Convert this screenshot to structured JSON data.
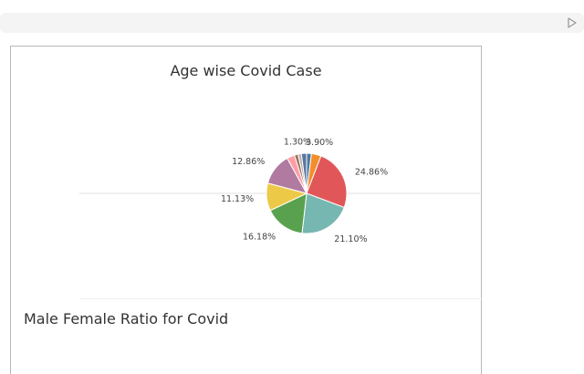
{
  "toolbar": {
    "play_icon": "play-icon"
  },
  "chart_data": {
    "type": "pie",
    "title": "Age wise Covid Case",
    "slices": [
      {
        "label": "",
        "value": 1.95,
        "color": "#4e79a7"
      },
      {
        "label": "3.90%",
        "value": 3.9,
        "color": "#f28e2b"
      },
      {
        "label": "24.86%",
        "value": 24.86,
        "color": "#e15759"
      },
      {
        "label": "21.10%",
        "value": 21.1,
        "color": "#76b7b2"
      },
      {
        "label": "16.18%",
        "value": 16.18,
        "color": "#59a14f"
      },
      {
        "label": "11.13%",
        "value": 11.13,
        "color": "#edc948"
      },
      {
        "label": "12.86%",
        "value": 12.86,
        "color": "#b07aa1"
      },
      {
        "label": "",
        "value": 3.1,
        "color": "#ff9da7"
      },
      {
        "label": "",
        "value": 1.52,
        "color": "#9c755f"
      },
      {
        "label": "1.30%",
        "value": 1.3,
        "color": "#bab0ac"
      },
      {
        "label": "",
        "value": 2.1,
        "color": "#59769e"
      }
    ]
  },
  "second_section": {
    "title": "Male Female Ratio for Covid"
  }
}
